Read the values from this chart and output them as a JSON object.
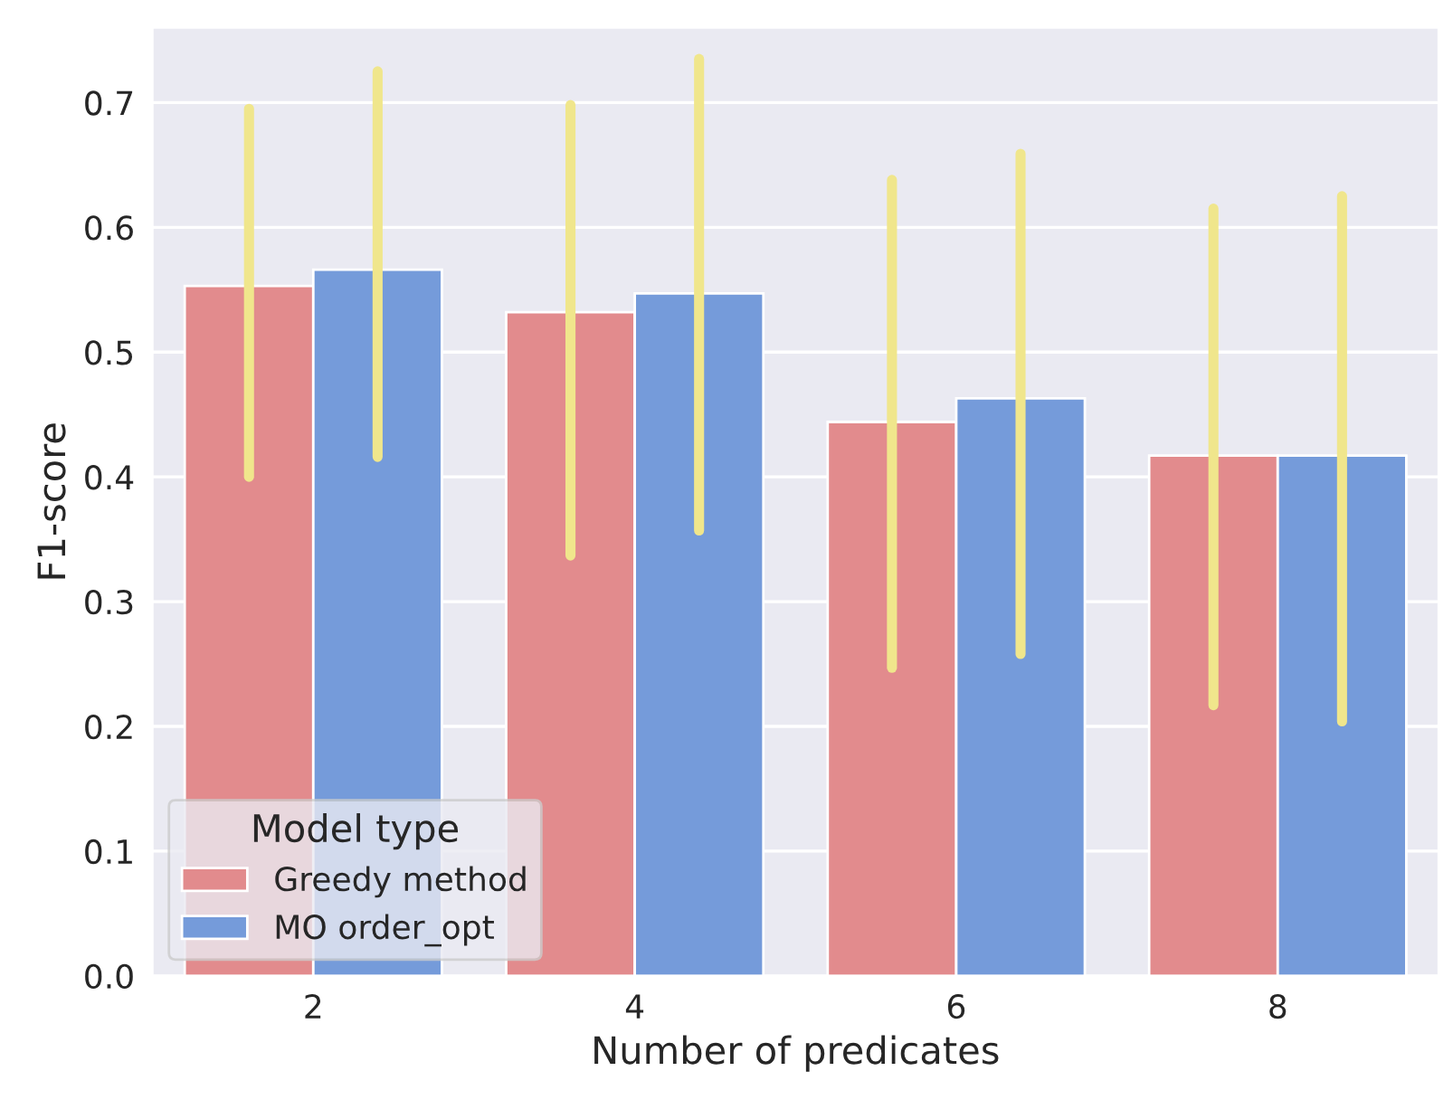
{
  "chart_data": {
    "type": "bar",
    "xlabel": "Number of predicates",
    "ylabel": "F1-score",
    "legend_title": "Model type",
    "categories": [
      "2",
      "4",
      "6",
      "8"
    ],
    "series": [
      {
        "name": "Greedy method",
        "color": "#e28b8d",
        "values": [
          0.553,
          0.532,
          0.444,
          0.417
        ],
        "errors": [
          [
            0.4,
            0.695
          ],
          [
            0.337,
            0.698
          ],
          [
            0.247,
            0.638
          ],
          [
            0.217,
            0.615
          ]
        ]
      },
      {
        "name": "MO order_opt",
        "color": "#759bda",
        "values": [
          0.566,
          0.547,
          0.463,
          0.417
        ],
        "errors": [
          [
            0.416,
            0.725
          ],
          [
            0.357,
            0.735
          ],
          [
            0.258,
            0.659
          ],
          [
            0.204,
            0.625
          ]
        ]
      }
    ],
    "ylim": [
      0,
      0.76
    ],
    "yticks": [
      {
        "value": 0,
        "label": "0.0"
      },
      0.1,
      0.2,
      0.3,
      0.4,
      0.5,
      0.6,
      0.7
    ],
    "grid": "y",
    "legend": "bottom left"
  }
}
